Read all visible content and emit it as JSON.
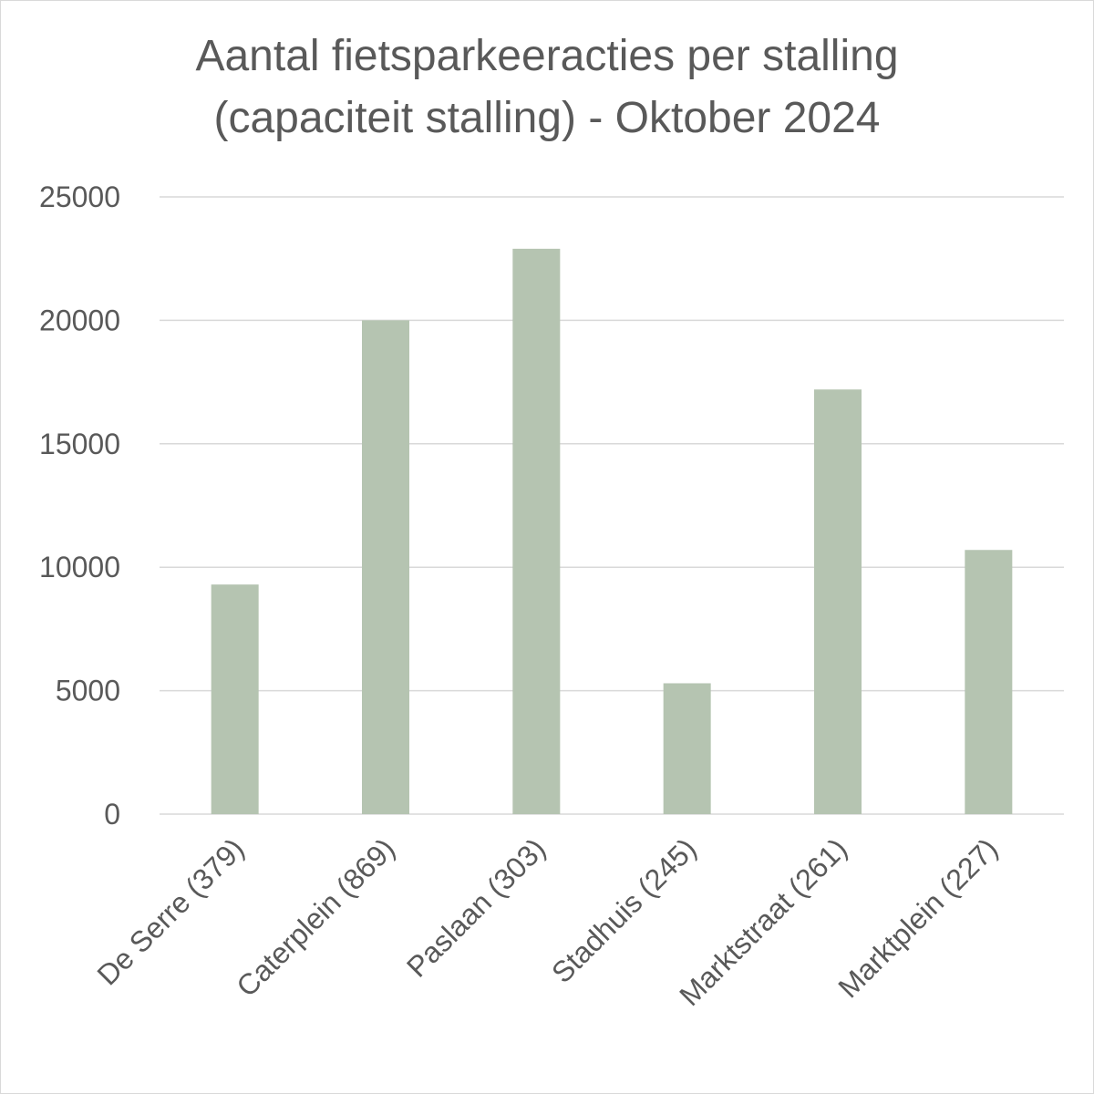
{
  "chart_data": {
    "type": "bar",
    "title_lines": [
      "Aantal fietsparkeeracties per stalling",
      "(capaciteit stalling) - Oktober 2024"
    ],
    "categories": [
      "De Serre (379)",
      "Caterplein (869)",
      "Paslaan (303)",
      "Stadhuis (245)",
      "Marktstraat (261)",
      "Marktplein (227)"
    ],
    "values": [
      9300,
      20000,
      22900,
      5300,
      17200,
      10700
    ],
    "ylim": [
      0,
      25000
    ],
    "yticks": [
      "0",
      "5000",
      "10000",
      "15000",
      "20000",
      "25000"
    ],
    "grid": true,
    "legend": "none",
    "bar_color": "#b5c4b1",
    "text_color": "#595959",
    "grid_color": "#d9d9d9"
  }
}
